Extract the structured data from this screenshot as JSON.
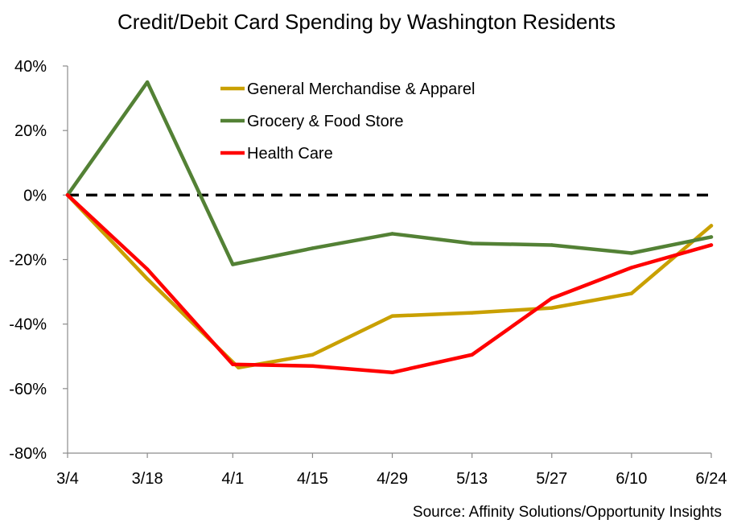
{
  "chart_data": {
    "type": "line",
    "title": "Credit/Debit Card Spending by Washington Residents",
    "source": "Source: Affinity Solutions/Opportunity Insights",
    "categories": [
      "3/4",
      "3/18",
      "4/1",
      "4/15",
      "4/29",
      "5/13",
      "5/27",
      "6/10",
      "6/24"
    ],
    "x_positions": [
      0,
      14,
      29,
      43,
      57,
      71,
      85,
      99,
      113
    ],
    "ylim": [
      -80,
      40
    ],
    "yticks": [
      40,
      20,
      0,
      -20,
      -40,
      -60,
      -80
    ],
    "ytick_labels": [
      "40%",
      "20%",
      "0%",
      "-20%",
      "-40%",
      "-60%",
      "-80%"
    ],
    "grid": false,
    "legend_position": "top-center",
    "reference_line": {
      "y": 0,
      "style": "dashed",
      "color": "#000000"
    },
    "series": [
      {
        "name": "General Merchandise & Apparel",
        "color": "#C9A000",
        "points": [
          [
            0,
            0
          ],
          [
            14,
            -26
          ],
          [
            30,
            -53.5
          ],
          [
            43,
            -49.5
          ],
          [
            57,
            -37.5
          ],
          [
            71,
            -36.5
          ],
          [
            85,
            -35
          ],
          [
            99,
            -30.5
          ],
          [
            113,
            -9.5
          ]
        ]
      },
      {
        "name": "Grocery & Food Store",
        "color": "#538135",
        "points": [
          [
            0,
            0
          ],
          [
            14,
            35
          ],
          [
            29,
            -21.5
          ],
          [
            43,
            -16.5
          ],
          [
            57,
            -12
          ],
          [
            71,
            -15
          ],
          [
            85,
            -15.5
          ],
          [
            99,
            -18
          ],
          [
            113,
            -13
          ]
        ]
      },
      {
        "name": "Health Care",
        "color": "#FF0000",
        "points": [
          [
            0,
            0
          ],
          [
            14,
            -23
          ],
          [
            29,
            -52.5
          ],
          [
            43,
            -53
          ],
          [
            57,
            -55
          ],
          [
            71,
            -49.5
          ],
          [
            85,
            -32
          ],
          [
            99,
            -22.5
          ],
          [
            113,
            -15.5
          ]
        ]
      }
    ]
  }
}
